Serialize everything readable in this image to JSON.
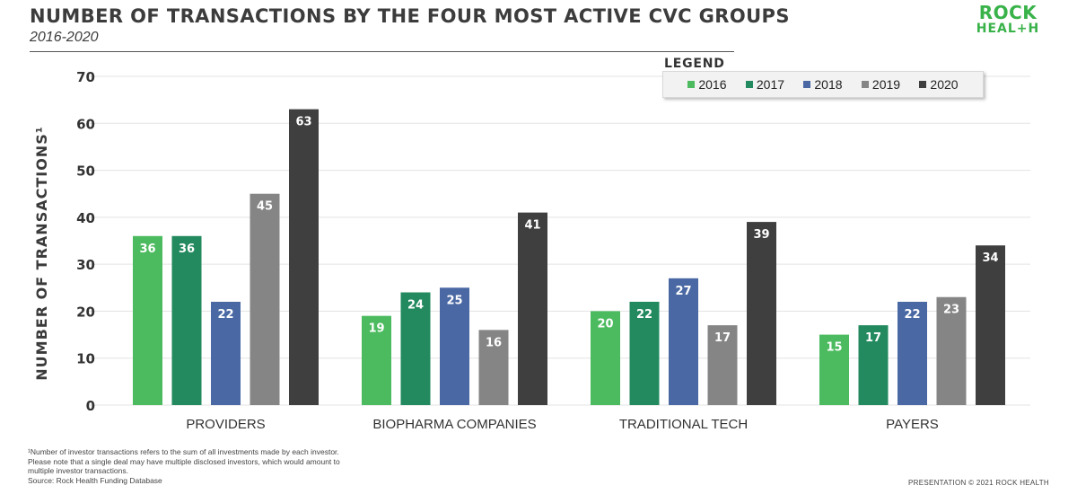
{
  "header": {
    "title": "NUMBER OF TRANSACTIONS BY THE FOUR MOST ACTIVE CVC GROUPS",
    "subtitle": "2016-2020"
  },
  "logo": {
    "line1": "ROCK",
    "line2": "HEAL+H"
  },
  "legend": {
    "title": "LEGEND"
  },
  "footer": {
    "footnote": "¹Number of investor transactions refers to the sum of all investments made by each investor. Please note that a single deal may have multiple disclosed investors, which would amount to multiple investor transactions.",
    "source": "Source: Rock Health Funding Database",
    "copyright": "PRESENTATION © 2021 ROCK HEALTH"
  },
  "chart_data": {
    "type": "bar",
    "title": "NUMBER OF TRANSACTIONS BY THE FOUR MOST ACTIVE CVC GROUPS",
    "subtitle": "2016-2020",
    "xlabel": "",
    "ylabel": "NUMBER OF TRANSACTIONS¹",
    "ylim": [
      0,
      70
    ],
    "yticks": [
      0,
      10,
      20,
      30,
      40,
      50,
      60,
      70
    ],
    "grid": true,
    "legend_position": "top-right",
    "categories": [
      "PROVIDERS",
      "BIOPHARMA COMPANIES",
      "TRADITIONAL TECH",
      "PAYERS"
    ],
    "series": [
      {
        "name": "2016",
        "color": "#4cbb5f",
        "values": [
          36,
          19,
          20,
          15
        ]
      },
      {
        "name": "2017",
        "color": "#228a5e",
        "values": [
          36,
          24,
          22,
          17
        ]
      },
      {
        "name": "2018",
        "color": "#4a68a3",
        "values": [
          22,
          25,
          27,
          22
        ]
      },
      {
        "name": "2019",
        "color": "#858585",
        "values": [
          45,
          16,
          17,
          23
        ]
      },
      {
        "name": "2020",
        "color": "#3f3f3f",
        "values": [
          63,
          41,
          39,
          34
        ]
      }
    ]
  }
}
